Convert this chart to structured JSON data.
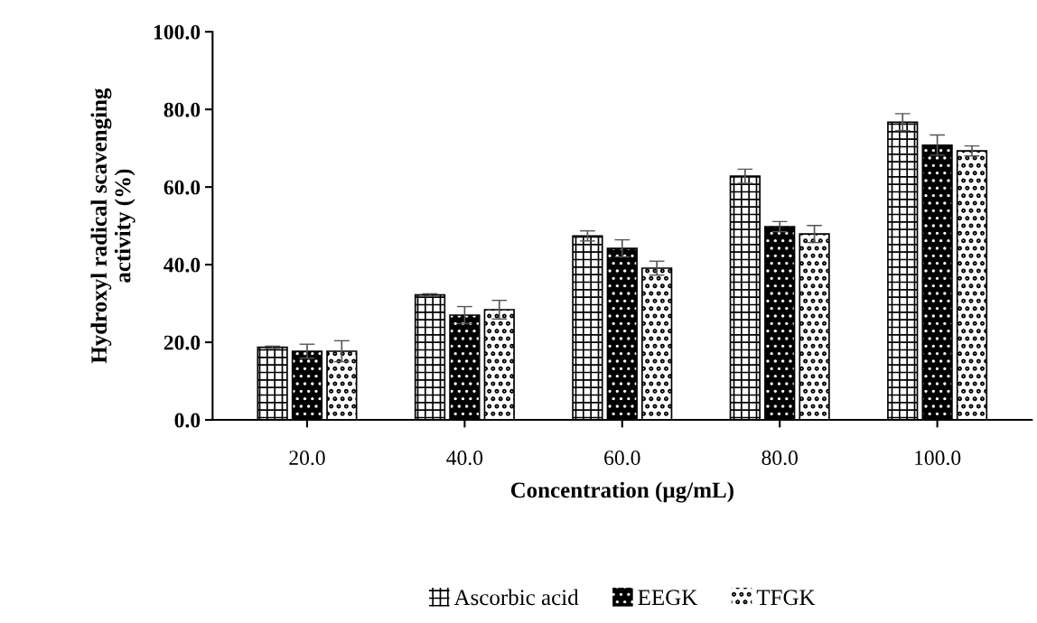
{
  "chart_data": {
    "type": "bar",
    "xlabel": "Concentration (µg/mL)",
    "ylabel": "Hydroxyl radical scavenging\nactivity (%)",
    "categories": [
      "20.0",
      "40.0",
      "60.0",
      "80.0",
      "100.0"
    ],
    "series": [
      {
        "name": "Ascorbic acid",
        "color": "#ffffff",
        "values": [
          18.7,
          32.2,
          47.4,
          62.8,
          76.7
        ],
        "errors": [
          0.3,
          0.3,
          1.3,
          1.8,
          2.2
        ]
      },
      {
        "name": "EEGK",
        "color": "#000000",
        "values": [
          17.7,
          27.0,
          44.2,
          49.8,
          70.8
        ],
        "errors": [
          1.8,
          2.2,
          2.2,
          1.3,
          2.6
        ]
      },
      {
        "name": "TFGK",
        "color": "#ffffff",
        "values": [
          17.7,
          28.4,
          39.1,
          47.9,
          69.3
        ],
        "errors": [
          2.7,
          2.4,
          1.8,
          2.2,
          1.3
        ]
      }
    ],
    "ylim": [
      0,
      100
    ],
    "yticks": [
      {
        "value": 0,
        "label": "0.0"
      },
      {
        "value": 20,
        "label": "20.0"
      },
      {
        "value": 40,
        "label": "40.0"
      },
      {
        "value": 60,
        "label": "60.0"
      },
      {
        "value": 80,
        "label": "80.0"
      },
      {
        "value": 100,
        "label": "100.0"
      }
    ],
    "grid": false,
    "legend": "bottom"
  }
}
